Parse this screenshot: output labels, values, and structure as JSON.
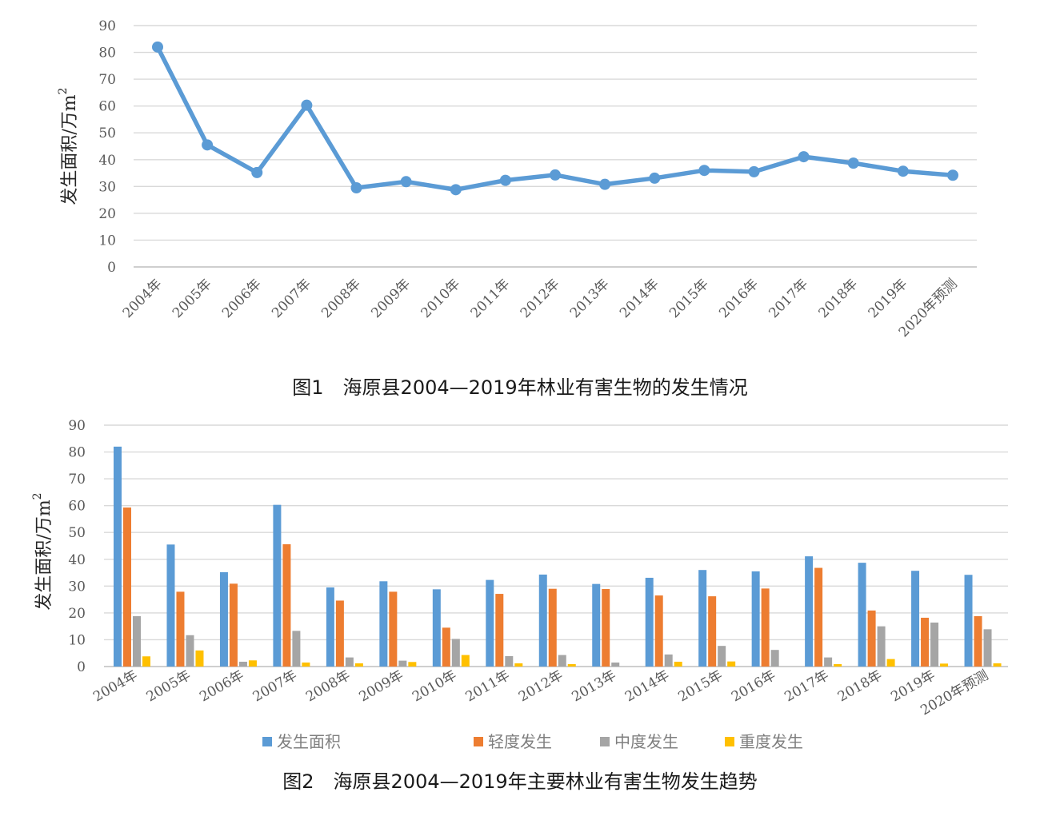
{
  "captions": {
    "fig1": "图1　海原县2004—2019年林业有害生物的发生情况",
    "fig2": "图2　海原县2004—2019年主要林业有害生物发生趋势"
  },
  "chart_data": [
    {
      "type": "line",
      "title": "",
      "xlabel": "",
      "ylabel": "发生面积/万m²",
      "ylim": [
        0,
        90
      ],
      "yticks": [
        0,
        10,
        20,
        30,
        40,
        50,
        60,
        70,
        80,
        90
      ],
      "grid": true,
      "categories": [
        "2004年",
        "2005年",
        "2006年",
        "2007年",
        "2008年",
        "2009年",
        "2010年",
        "2011年",
        "2012年",
        "2013年",
        "2014年",
        "2015年",
        "2016年",
        "2017年",
        "2018年",
        "2019年",
        "2020年预测"
      ],
      "series": [
        {
          "values": [
            82,
            45.5,
            35.2,
            60.3,
            29.5,
            31.8,
            28.8,
            32.3,
            34.3,
            30.8,
            33.1,
            36,
            35.5,
            41.1,
            38.7,
            35.7,
            34.2
          ],
          "color": "#5b9bd5"
        }
      ]
    },
    {
      "type": "bar",
      "title": "",
      "xlabel": "",
      "ylabel": "发生面积/万m²",
      "ylim": [
        0,
        90
      ],
      "yticks": [
        0,
        10,
        20,
        30,
        40,
        50,
        60,
        70,
        80,
        90
      ],
      "grid": true,
      "legend_position": "bottom",
      "categories": [
        "2004年",
        "2005年",
        "2006年",
        "2007年",
        "2008年",
        "2009年",
        "2010年",
        "2011年",
        "2012年",
        "2013年",
        "2014年",
        "2015年",
        "2016年",
        "2017年",
        "2018年",
        "2019年",
        "2020年预测"
      ],
      "series": [
        {
          "name": "发生面积",
          "color": "#5b9bd5",
          "values": [
            82,
            45.5,
            35.2,
            60.3,
            29.5,
            31.8,
            28.8,
            32.3,
            34.3,
            30.8,
            33.1,
            36,
            35.5,
            41.1,
            38.7,
            35.7,
            34.2
          ]
        },
        {
          "name": "轻度发生",
          "color": "#ed7d31",
          "values": [
            59.3,
            27.9,
            30.9,
            45.6,
            24.6,
            27.9,
            14.5,
            27.1,
            29,
            28.9,
            26.5,
            26.2,
            29.1,
            36.8,
            20.9,
            18.2,
            18.8
          ]
        },
        {
          "name": "中度发生",
          "color": "#a5a5a5",
          "values": [
            18.8,
            11.7,
            1.8,
            13.3,
            3.4,
            2.2,
            10.3,
            3.9,
            4.3,
            1.5,
            4.5,
            7.7,
            6.2,
            3.4,
            15,
            16.4,
            13.9
          ]
        },
        {
          "name": "重度发生",
          "color": "#ffc000",
          "values": [
            3.8,
            6,
            2.3,
            1.5,
            1.2,
            1.7,
            4.3,
            1.2,
            0.9,
            0,
            1.8,
            1.9,
            0,
            0.9,
            2.8,
            1.1,
            1.2
          ]
        }
      ]
    }
  ]
}
